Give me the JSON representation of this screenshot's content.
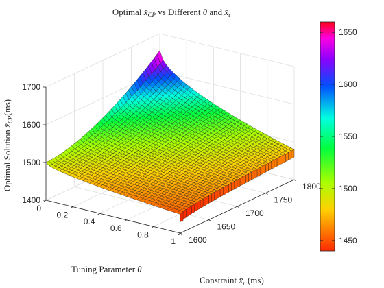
{
  "chart_data": {
    "type": "surface",
    "title": "Optimal x̄_CP vs Different θ and x̄_r",
    "title_parts": {
      "pre": "Optimal ",
      "var": "x̄",
      "sub": "CP",
      "mid": " vs Different ",
      "theta": "θ",
      "and": " and ",
      "var2": "x̄",
      "sub2": "r"
    },
    "xlabel": "Tuning Parameter θ",
    "xlabel_parts": {
      "text": "Tuning Parameter ",
      "sym": "θ"
    },
    "ylabel": "Constraint x̄_r (ms)",
    "ylabel_parts": {
      "text": "Constraint ",
      "sym": "x̄",
      "sub": "r",
      "unit": " (ms)"
    },
    "zlabel": "Optimal Solution x̄_CP(ms)",
    "zlabel_parts": {
      "text": "Optimal Solution ",
      "sym": "x̄",
      "sub": "CP",
      "unit": "(ms)"
    },
    "x_ticks": [
      "0",
      "0.2",
      "0.4",
      "0.6",
      "0.8",
      "1"
    ],
    "y_ticks": [
      "1600",
      "1650",
      "1700",
      "1750",
      "1800"
    ],
    "z_ticks": [
      "1400",
      "1500",
      "1600",
      "1700"
    ],
    "colorbar_ticks": [
      "1450",
      "1500",
      "1550",
      "1600",
      "1650"
    ],
    "xlim": [
      0,
      1
    ],
    "ylim": [
      1600,
      1800
    ],
    "zlim": [
      1400,
      1700
    ],
    "clim": [
      1440,
      1660
    ],
    "colormap": "hsv",
    "grid": true,
    "corner_values": [
      {
        "theta": 0,
        "x_r": 1600,
        "x_cp": 1500
      },
      {
        "theta": 0,
        "x_r": 1800,
        "x_cp": 1655
      },
      {
        "theta": 1,
        "x_r": 1600,
        "x_cp": 1450
      },
      {
        "theta": 1,
        "x_r": 1800,
        "x_cp": 1480
      }
    ]
  }
}
